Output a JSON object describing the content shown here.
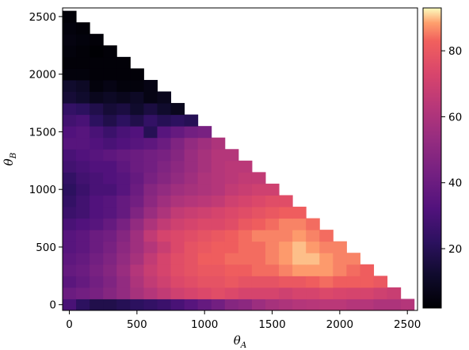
{
  "chart_data": {
    "type": "heatmap",
    "title": "",
    "xlabel": "θ",
    "xlabel_sub": "A",
    "ylabel": "θ",
    "ylabel_sub": "B",
    "xlim": [
      -50,
      2575
    ],
    "ylim": [
      -50,
      2575
    ],
    "cell_size": 100,
    "x_ticks": [
      0,
      500,
      1000,
      1500,
      2000,
      2500
    ],
    "y_ticks": [
      0,
      500,
      1000,
      1500,
      2000,
      2500
    ],
    "colormap": "magma",
    "colorbar": {
      "min": 2,
      "max": 93,
      "ticks": [
        20,
        40,
        60,
        80
      ]
    },
    "rows_note": "z[j][i] is the value at thetaB = j*100 (j=0 bottom) and thetaA = i*100",
    "z": [
      [
        30,
        22,
        18,
        18,
        20,
        22,
        24,
        26,
        30,
        34,
        38,
        42,
        48,
        50,
        55,
        58,
        60,
        62,
        63,
        64,
        64,
        62,
        62,
        60,
        60,
        62
      ],
      [
        40,
        42,
        44,
        48,
        52,
        58,
        62,
        66,
        70,
        72,
        74,
        76,
        74,
        72,
        72,
        72,
        70,
        72,
        72,
        74,
        73,
        72,
        72,
        70,
        68
      ],
      [
        35,
        38,
        42,
        46,
        52,
        60,
        66,
        70,
        74,
        76,
        78,
        78,
        80,
        78,
        78,
        78,
        80,
        80,
        82,
        84,
        82,
        82,
        82,
        80
      ],
      [
        38,
        40,
        44,
        48,
        54,
        62,
        68,
        72,
        76,
        78,
        80,
        80,
        82,
        82,
        84,
        84,
        86,
        88,
        88,
        88,
        86,
        84,
        82
      ],
      [
        36,
        38,
        42,
        46,
        52,
        58,
        66,
        72,
        76,
        78,
        82,
        82,
        84,
        84,
        84,
        86,
        88,
        90,
        90,
        88,
        86,
        86
      ],
      [
        34,
        36,
        40,
        44,
        50,
        56,
        62,
        68,
        74,
        78,
        80,
        82,
        82,
        84,
        84,
        86,
        88,
        90,
        88,
        86,
        86
      ],
      [
        34,
        36,
        40,
        42,
        48,
        56,
        66,
        72,
        74,
        76,
        78,
        80,
        82,
        84,
        86,
        86,
        86,
        88,
        86,
        84
      ],
      [
        30,
        32,
        34,
        38,
        44,
        52,
        60,
        66,
        70,
        72,
        74,
        74,
        76,
        80,
        82,
        84,
        86,
        86,
        84
      ],
      [
        26,
        28,
        32,
        34,
        38,
        46,
        54,
        60,
        66,
        68,
        70,
        72,
        74,
        76,
        78,
        80,
        82,
        82
      ],
      [
        24,
        28,
        32,
        34,
        38,
        42,
        50,
        56,
        60,
        62,
        64,
        66,
        70,
        72,
        74,
        76,
        76
      ],
      [
        22,
        26,
        30,
        30,
        34,
        40,
        48,
        52,
        56,
        58,
        60,
        62,
        66,
        68,
        70,
        70
      ],
      [
        24,
        28,
        30,
        32,
        34,
        38,
        44,
        48,
        52,
        56,
        60,
        62,
        64,
        66,
        66
      ],
      [
        28,
        30,
        32,
        32,
        36,
        40,
        42,
        46,
        50,
        54,
        58,
        62,
        64,
        64
      ],
      [
        30,
        32,
        34,
        36,
        38,
        40,
        42,
        44,
        48,
        54,
        58,
        62,
        62
      ],
      [
        34,
        34,
        32,
        30,
        32,
        34,
        36,
        40,
        46,
        52,
        56,
        60
      ],
      [
        32,
        34,
        30,
        26,
        30,
        32,
        20,
        34,
        38,
        42,
        44
      ],
      [
        28,
        30,
        22,
        18,
        22,
        18,
        24,
        20,
        22,
        20
      ],
      [
        24,
        22,
        18,
        14,
        16,
        12,
        16,
        12,
        8
      ],
      [
        14,
        12,
        8,
        10,
        8,
        10,
        6,
        8
      ],
      [
        12,
        10,
        4,
        6,
        4,
        4,
        6
      ],
      [
        4,
        4,
        3,
        3,
        3,
        3
      ],
      [
        3,
        3,
        3,
        3,
        3
      ],
      [
        4,
        3,
        2,
        3
      ],
      [
        5,
        4,
        3
      ],
      [
        4,
        3
      ],
      [
        3
      ]
    ]
  }
}
